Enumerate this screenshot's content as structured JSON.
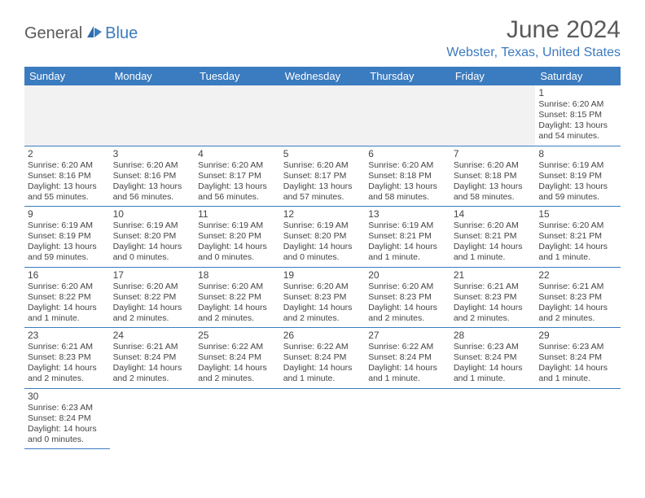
{
  "logo": {
    "text1": "General",
    "text2": "Blue"
  },
  "title": "June 2024",
  "location": "Webster, Texas, United States",
  "colors": {
    "header_bg": "#3b7bbf",
    "header_text": "#ffffff",
    "accent": "#3b7bbf",
    "text": "#444444",
    "title_text": "#5a5a5a",
    "empty_bg": "#f2f2f2",
    "page_bg": "#ffffff"
  },
  "typography": {
    "title_fontsize": 30,
    "location_fontsize": 16,
    "dayheader_fontsize": 13,
    "daynum_fontsize": 12,
    "body_fontsize": 10.5
  },
  "day_headers": [
    "Sunday",
    "Monday",
    "Tuesday",
    "Wednesday",
    "Thursday",
    "Friday",
    "Saturday"
  ],
  "weeks": [
    [
      null,
      null,
      null,
      null,
      null,
      null,
      {
        "n": "1",
        "sunrise": "Sunrise: 6:20 AM",
        "sunset": "Sunset: 8:15 PM",
        "daylight": "Daylight: 13 hours and 54 minutes."
      }
    ],
    [
      {
        "n": "2",
        "sunrise": "Sunrise: 6:20 AM",
        "sunset": "Sunset: 8:16 PM",
        "daylight": "Daylight: 13 hours and 55 minutes."
      },
      {
        "n": "3",
        "sunrise": "Sunrise: 6:20 AM",
        "sunset": "Sunset: 8:16 PM",
        "daylight": "Daylight: 13 hours and 56 minutes."
      },
      {
        "n": "4",
        "sunrise": "Sunrise: 6:20 AM",
        "sunset": "Sunset: 8:17 PM",
        "daylight": "Daylight: 13 hours and 56 minutes."
      },
      {
        "n": "5",
        "sunrise": "Sunrise: 6:20 AM",
        "sunset": "Sunset: 8:17 PM",
        "daylight": "Daylight: 13 hours and 57 minutes."
      },
      {
        "n": "6",
        "sunrise": "Sunrise: 6:20 AM",
        "sunset": "Sunset: 8:18 PM",
        "daylight": "Daylight: 13 hours and 58 minutes."
      },
      {
        "n": "7",
        "sunrise": "Sunrise: 6:20 AM",
        "sunset": "Sunset: 8:18 PM",
        "daylight": "Daylight: 13 hours and 58 minutes."
      },
      {
        "n": "8",
        "sunrise": "Sunrise: 6:19 AM",
        "sunset": "Sunset: 8:19 PM",
        "daylight": "Daylight: 13 hours and 59 minutes."
      }
    ],
    [
      {
        "n": "9",
        "sunrise": "Sunrise: 6:19 AM",
        "sunset": "Sunset: 8:19 PM",
        "daylight": "Daylight: 13 hours and 59 minutes."
      },
      {
        "n": "10",
        "sunrise": "Sunrise: 6:19 AM",
        "sunset": "Sunset: 8:20 PM",
        "daylight": "Daylight: 14 hours and 0 minutes."
      },
      {
        "n": "11",
        "sunrise": "Sunrise: 6:19 AM",
        "sunset": "Sunset: 8:20 PM",
        "daylight": "Daylight: 14 hours and 0 minutes."
      },
      {
        "n": "12",
        "sunrise": "Sunrise: 6:19 AM",
        "sunset": "Sunset: 8:20 PM",
        "daylight": "Daylight: 14 hours and 0 minutes."
      },
      {
        "n": "13",
        "sunrise": "Sunrise: 6:19 AM",
        "sunset": "Sunset: 8:21 PM",
        "daylight": "Daylight: 14 hours and 1 minute."
      },
      {
        "n": "14",
        "sunrise": "Sunrise: 6:20 AM",
        "sunset": "Sunset: 8:21 PM",
        "daylight": "Daylight: 14 hours and 1 minute."
      },
      {
        "n": "15",
        "sunrise": "Sunrise: 6:20 AM",
        "sunset": "Sunset: 8:21 PM",
        "daylight": "Daylight: 14 hours and 1 minute."
      }
    ],
    [
      {
        "n": "16",
        "sunrise": "Sunrise: 6:20 AM",
        "sunset": "Sunset: 8:22 PM",
        "daylight": "Daylight: 14 hours and 1 minute."
      },
      {
        "n": "17",
        "sunrise": "Sunrise: 6:20 AM",
        "sunset": "Sunset: 8:22 PM",
        "daylight": "Daylight: 14 hours and 2 minutes."
      },
      {
        "n": "18",
        "sunrise": "Sunrise: 6:20 AM",
        "sunset": "Sunset: 8:22 PM",
        "daylight": "Daylight: 14 hours and 2 minutes."
      },
      {
        "n": "19",
        "sunrise": "Sunrise: 6:20 AM",
        "sunset": "Sunset: 8:23 PM",
        "daylight": "Daylight: 14 hours and 2 minutes."
      },
      {
        "n": "20",
        "sunrise": "Sunrise: 6:20 AM",
        "sunset": "Sunset: 8:23 PM",
        "daylight": "Daylight: 14 hours and 2 minutes."
      },
      {
        "n": "21",
        "sunrise": "Sunrise: 6:21 AM",
        "sunset": "Sunset: 8:23 PM",
        "daylight": "Daylight: 14 hours and 2 minutes."
      },
      {
        "n": "22",
        "sunrise": "Sunrise: 6:21 AM",
        "sunset": "Sunset: 8:23 PM",
        "daylight": "Daylight: 14 hours and 2 minutes."
      }
    ],
    [
      {
        "n": "23",
        "sunrise": "Sunrise: 6:21 AM",
        "sunset": "Sunset: 8:23 PM",
        "daylight": "Daylight: 14 hours and 2 minutes."
      },
      {
        "n": "24",
        "sunrise": "Sunrise: 6:21 AM",
        "sunset": "Sunset: 8:24 PM",
        "daylight": "Daylight: 14 hours and 2 minutes."
      },
      {
        "n": "25",
        "sunrise": "Sunrise: 6:22 AM",
        "sunset": "Sunset: 8:24 PM",
        "daylight": "Daylight: 14 hours and 2 minutes."
      },
      {
        "n": "26",
        "sunrise": "Sunrise: 6:22 AM",
        "sunset": "Sunset: 8:24 PM",
        "daylight": "Daylight: 14 hours and 1 minute."
      },
      {
        "n": "27",
        "sunrise": "Sunrise: 6:22 AM",
        "sunset": "Sunset: 8:24 PM",
        "daylight": "Daylight: 14 hours and 1 minute."
      },
      {
        "n": "28",
        "sunrise": "Sunrise: 6:23 AM",
        "sunset": "Sunset: 8:24 PM",
        "daylight": "Daylight: 14 hours and 1 minute."
      },
      {
        "n": "29",
        "sunrise": "Sunrise: 6:23 AM",
        "sunset": "Sunset: 8:24 PM",
        "daylight": "Daylight: 14 hours and 1 minute."
      }
    ],
    [
      {
        "n": "30",
        "sunrise": "Sunrise: 6:23 AM",
        "sunset": "Sunset: 8:24 PM",
        "daylight": "Daylight: 14 hours and 0 minutes."
      },
      null,
      null,
      null,
      null,
      null,
      null
    ]
  ]
}
